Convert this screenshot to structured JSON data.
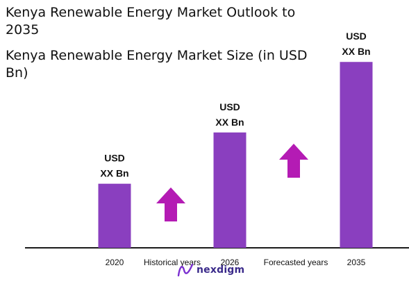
{
  "title": "Kenya Renewable Energy Market Outlook to 2035",
  "subtitle": "Kenya Renewable Energy Market Size (in USD Bn)",
  "logo_text": "nexdigm",
  "chart_data": {
    "type": "bar",
    "categories": [
      "2020",
      "2026",
      "2035"
    ],
    "values": [
      1.0,
      1.8,
      2.9
    ],
    "bar_labels": [
      [
        "USD",
        "XX Bn"
      ],
      [
        "USD",
        "XX Bn"
      ],
      [
        "USD",
        "XX Bn"
      ]
    ],
    "bar_color": "#8a3fbf",
    "arrow_color": "#b41bb4",
    "axis_color": "#1a1a1a",
    "period_labels": [
      "Historical years",
      "Forecasted years"
    ],
    "ylim": [
      0,
      3
    ]
  }
}
